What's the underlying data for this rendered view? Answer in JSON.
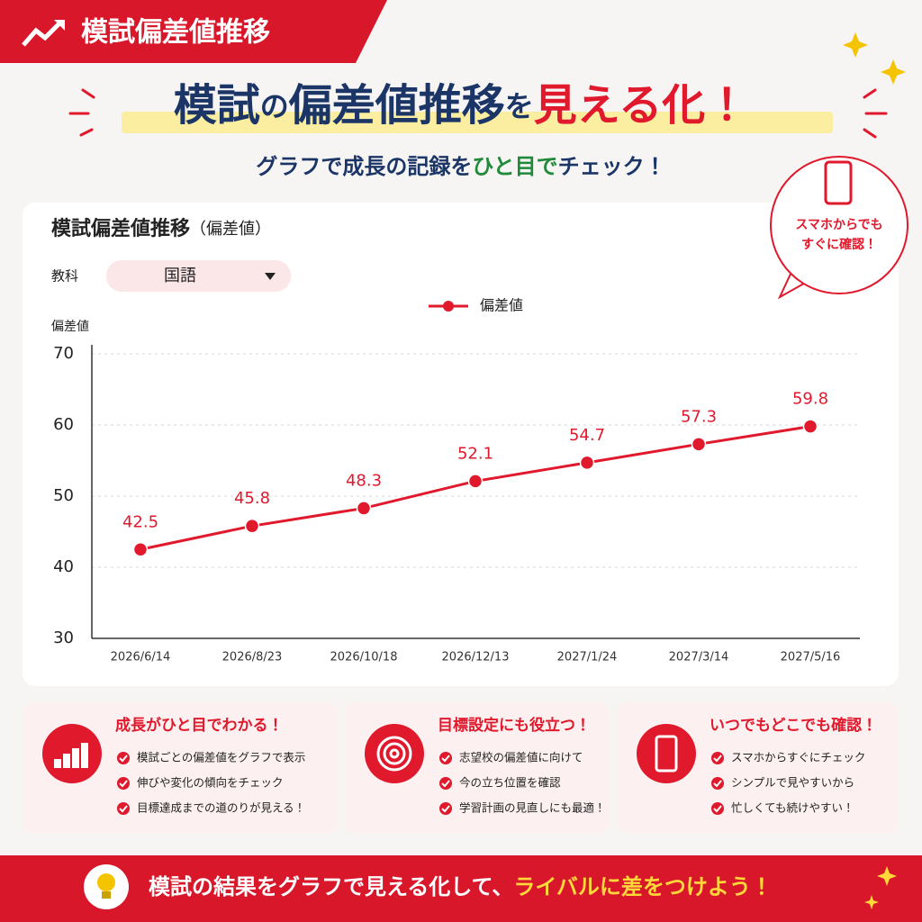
{
  "header": {
    "tag": "模試偏差値推移"
  },
  "headline": {
    "parts": [
      "模試",
      "の",
      "偏差値推移",
      "を",
      "見える化！"
    ]
  },
  "subheadline": {
    "parts": [
      "グラフで成長の記録を",
      "ひと目で",
      "チェック！"
    ]
  },
  "badge": {
    "lines": [
      "スマホからでも",
      "すぐに確認！"
    ]
  },
  "panel": {
    "subject_label": "教科",
    "subject": "国語"
  },
  "chart_data": {
    "type": "line",
    "title": "模試偏差値推移",
    "unit": "（偏差値）",
    "y_label": "偏差値",
    "categories": [
      "2026/6/14",
      "2026/8/23",
      "2026/10/18",
      "2026/12/13",
      "2027/1/24",
      "2027/3/14",
      "2027/5/16"
    ],
    "series": [
      {
        "name": "偏差値",
        "color": "#e0192d",
        "values": [
          42.5,
          45.8,
          48.3,
          52.1,
          54.7,
          57.3,
          59.8
        ]
      }
    ],
    "ylim": [
      30,
      70
    ],
    "yticks": [
      30,
      40,
      50,
      60,
      70
    ],
    "grid": true,
    "legend": "top"
  },
  "features": [
    {
      "title": "成長がひと目でわかる！",
      "items": [
        "模試ごとの偏差値をグラフで表示",
        "伸びや変化の傾向をチェック",
        "目標達成までの道のりが見える！"
      ]
    },
    {
      "title": "目標設定にも役立つ！",
      "items": [
        "志望校の偏差値に向けて",
        "今の立ち位置を確認",
        "学習計画の見直しにも最適！"
      ]
    },
    {
      "title": "いつでもどこでも確認！",
      "items": [
        "スマホからすぐにチェック",
        "シンプルで見やすいから",
        "忙しくても続けやすい！"
      ]
    }
  ],
  "footer": {
    "parts": [
      "模試の結果をグラフで見える化して、",
      "ライバルに差をつけよう！"
    ]
  }
}
